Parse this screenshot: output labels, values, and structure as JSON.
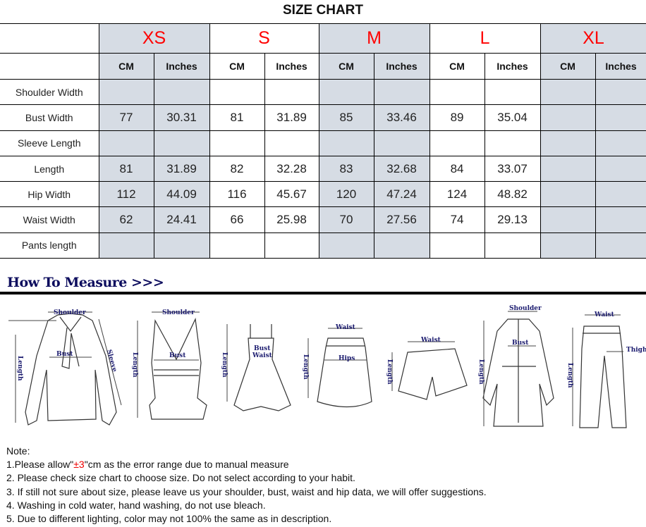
{
  "title": "SIZE CHART",
  "sizes": [
    "XS",
    "S",
    "M",
    "L",
    "XL"
  ],
  "units": [
    "CM",
    "Inches"
  ],
  "rows": [
    {
      "label": "Shoulder Width",
      "values": [
        "",
        "",
        "",
        "",
        "",
        "",
        "",
        "",
        "",
        ""
      ]
    },
    {
      "label": "Bust Width",
      "values": [
        "77",
        "30.31",
        "81",
        "31.89",
        "85",
        "33.46",
        "89",
        "35.04",
        "",
        ""
      ]
    },
    {
      "label": "Sleeve Length",
      "values": [
        "",
        "",
        "",
        "",
        "",
        "",
        "",
        "",
        "",
        ""
      ]
    },
    {
      "label": "Length",
      "values": [
        "81",
        "31.89",
        "82",
        "32.28",
        "83",
        "32.68",
        "84",
        "33.07",
        "",
        ""
      ]
    },
    {
      "label": "Hip Width",
      "values": [
        "112",
        "44.09",
        "116",
        "45.67",
        "120",
        "47.24",
        "124",
        "48.82",
        "",
        ""
      ]
    },
    {
      "label": "Waist Width",
      "values": [
        "62",
        "24.41",
        "66",
        "25.98",
        "70",
        "27.56",
        "74",
        "29.13",
        "",
        ""
      ]
    },
    {
      "label": "Pants length",
      "values": [
        "",
        "",
        "",
        "",
        "",
        "",
        "",
        "",
        "",
        ""
      ]
    }
  ],
  "colors": {
    "size_label": "#ff0000",
    "shaded_column": "#d6dce4",
    "measure_heading": "#0d0d5e"
  },
  "how_to_measure": {
    "heading": "How To Measure >>>",
    "labels": {
      "shoulder": "Shoulder",
      "bust": "Bust",
      "sleeve": "Sleeve",
      "length": "Length",
      "waist": "Waist",
      "hips": "Hips",
      "thigh": "Thigh"
    }
  },
  "notes": {
    "heading": "Note:",
    "n1_pre": "1.Please allow\"",
    "n1_red": "±3",
    "n1_post": "\"cm as the error range due to manual measure",
    "n2": "2. Please check size chart to choose size. Do not select according to your habit.",
    "n3": "3. If still not sure about size, please leave us your shoulder, bust, waist and hip data, we will offer suggestions.",
    "n4": "4. Washing in cold water, hand washing, do not use bleach.",
    "n5": "5. Due to different lighting, color may not 100% the same as in description."
  }
}
